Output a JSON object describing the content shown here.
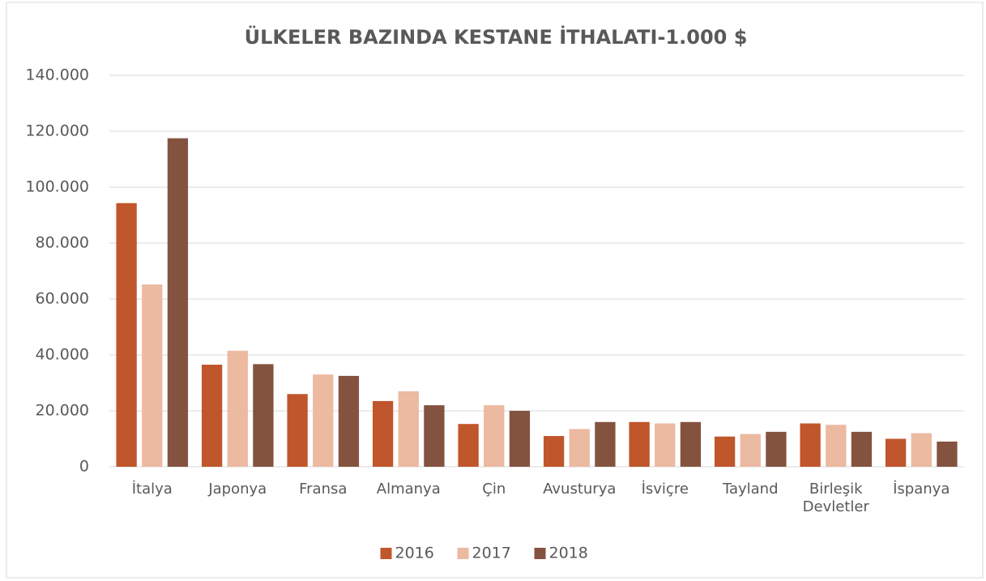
{
  "chart_data": {
    "type": "bar",
    "title": "ÜLKELER BAZINDA KESTANE İTHALATI-1.000 $",
    "categories": [
      "İtalya",
      "Japonya",
      "Fransa",
      "Almanya",
      "Çin",
      "Avusturya",
      "İsviçre",
      "Tayland",
      "Birleşik Devletler",
      "İspanya"
    ],
    "series": [
      {
        "name": "2016",
        "color": "#c0562b",
        "values": [
          94300,
          36500,
          26000,
          23500,
          15300,
          11000,
          16000,
          10800,
          15500,
          10000
        ]
      },
      {
        "name": "2017",
        "color": "#ecb9a1",
        "values": [
          65200,
          41500,
          33000,
          27000,
          22000,
          13500,
          15500,
          11700,
          15000,
          12000
        ]
      },
      {
        "name": "2018",
        "color": "#845340",
        "values": [
          117500,
          36700,
          32500,
          22000,
          20000,
          16000,
          16000,
          12500,
          12500,
          9000
        ]
      }
    ],
    "ylim": [
      0,
      140000
    ],
    "yticks": [
      0,
      {
        "value": 20000,
        "label": "20.000"
      },
      {
        "value": 40000,
        "label": "40.000"
      },
      {
        "value": 60000,
        "label": "60.000"
      },
      {
        "value": 80000,
        "label": "80.000"
      },
      {
        "value": 100000,
        "label": "100.000"
      },
      {
        "value": 120000,
        "label": "120.000"
      },
      {
        "value": 140000,
        "label": "140.000"
      }
    ],
    "grid": true,
    "legend": "bottom"
  }
}
